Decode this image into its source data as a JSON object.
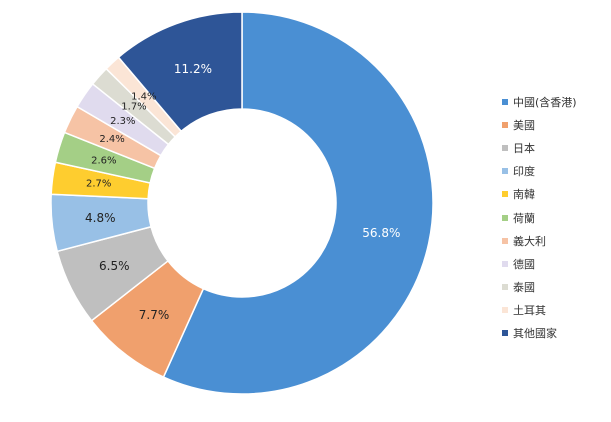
{
  "chart_data": {
    "type": "pie",
    "donut": true,
    "unit": "%",
    "categories": [
      "中國(含香港)",
      "美國",
      "日本",
      "印度",
      "南韓",
      "荷蘭",
      "義大利",
      "德國",
      "泰國",
      "土耳其",
      "其他國家"
    ],
    "values": [
      56.8,
      7.7,
      6.5,
      4.8,
      2.7,
      2.6,
      2.4,
      2.3,
      1.7,
      1.4,
      11.2
    ],
    "data_labels": [
      "56.8%",
      "7.7%",
      "6.5%",
      "4.8%",
      "2.7%",
      "2.6%",
      "2.4%",
      "2.3%",
      "1.7%",
      "1.4%",
      "11.2%"
    ],
    "colors": [
      "#4a8fd3",
      "#f0a06d",
      "#bfbfbf",
      "#98c0e6",
      "#fecd2f",
      "#a4cf86",
      "#f6c3a5",
      "#e0dbee",
      "#dcdcd2",
      "#fbe5d6",
      "#2e5597"
    ],
    "label_colors": [
      "#ffffff",
      "#222222",
      "#222222",
      "#222222",
      "#222222",
      "#222222",
      "#222222",
      "#222222",
      "#222222",
      "#222222",
      "#ffffff"
    ],
    "legend_position": "right"
  }
}
